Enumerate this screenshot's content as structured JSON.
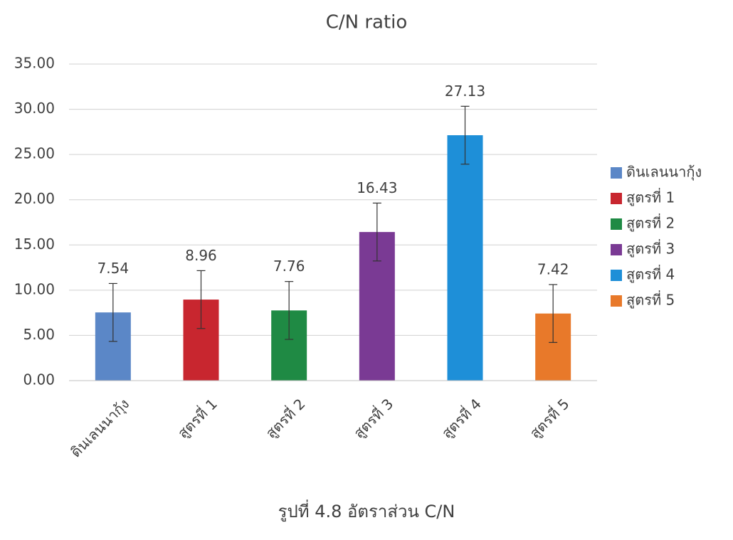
{
  "chart_data": {
    "type": "bar",
    "title": "C/N ratio",
    "categories": [
      "ดินเลนนากุ้ง",
      "สูตรที่ 1",
      "สูตรที่ 2",
      "สูตรที่ 3",
      "สูตรที่ 4",
      "สูตรที่ 5"
    ],
    "values": [
      7.54,
      8.96,
      7.76,
      16.43,
      27.13,
      7.42
    ],
    "errors": [
      3.2,
      3.2,
      3.2,
      3.2,
      3.2,
      3.2
    ],
    "colors": [
      "#5b87c7",
      "#c8262f",
      "#1f8a44",
      "#7a3a94",
      "#1e8fd8",
      "#e8792a"
    ],
    "ylim": [
      0,
      35
    ],
    "yticks": [
      {
        "value": 0,
        "label": "0.00"
      },
      {
        "value": 5,
        "label": "5.00"
      },
      {
        "value": 10,
        "label": "10.00"
      },
      {
        "value": 15,
        "label": "15.00"
      },
      {
        "value": 20,
        "label": "20.00"
      },
      {
        "value": 25,
        "label": "25.00"
      },
      {
        "value": 30,
        "label": "30.00"
      },
      {
        "value": 35,
        "label": "35.00"
      }
    ],
    "grid": true,
    "legend": "right",
    "caption": "รูปที่ 4.8 อัตราส่วน C/N"
  }
}
